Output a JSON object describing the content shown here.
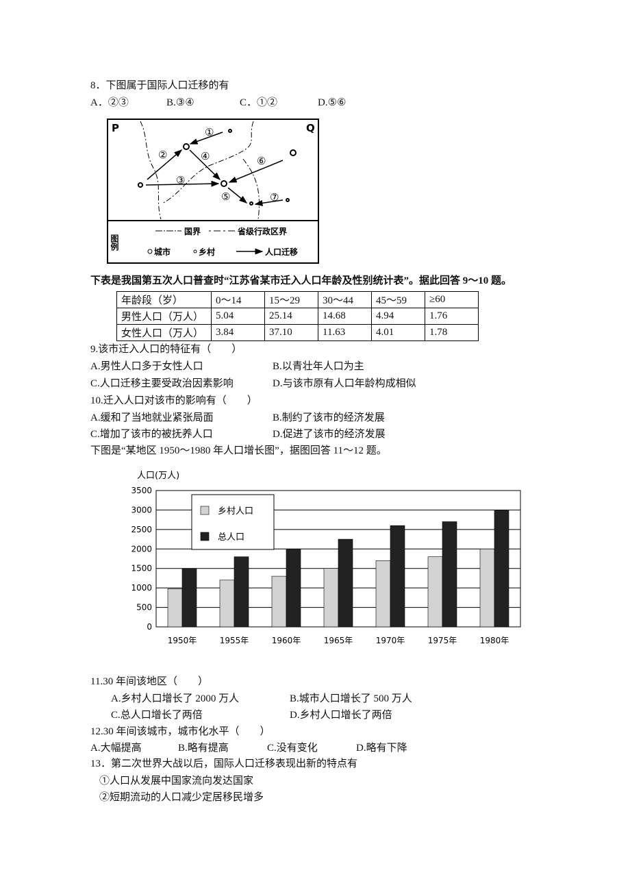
{
  "q8": {
    "stem": "8．下图属于国际人口迁移的有",
    "options": [
      "A．②③",
      "B.③④",
      "C．①②",
      "D.⑤⑥"
    ]
  },
  "map": {
    "corners": [
      "P",
      "Q"
    ],
    "arrows": [
      "①",
      "②",
      "③",
      "④",
      "⑤",
      "⑥",
      "⑦"
    ],
    "legend_title": "图例",
    "legend": [
      "国界",
      "省级行政区界",
      "城市",
      "乡村",
      "人口迁移"
    ]
  },
  "intro1": "下表是我国第五次人口普查时“江苏省某市迁入人口年龄及性别统计表”。据此回答 9～10 题。",
  "table": {
    "header": [
      "年龄段（岁）",
      "0～14",
      "15～29",
      "30～44",
      "45～59",
      "≥60"
    ],
    "rows": [
      [
        "男性人口（万人）",
        "5.04",
        "25.14",
        "14.68",
        "4.94",
        "1.76"
      ],
      [
        "女性人口（万人）",
        "3.84",
        "37.10",
        "11.63",
        "4.01",
        "1.78"
      ]
    ]
  },
  "q9": {
    "stem": "9.该市迁入人口的特征有（　　）",
    "options": [
      "A.男性人口多于女性人口",
      "B.以青壮年人口为主",
      "C.人口迁移主要受政治因素影响",
      "D.与该市原有人口年龄构成相似"
    ]
  },
  "q10": {
    "stem": "10.迁入人口对该市的影响有（　　）",
    "options": [
      "A.缓和了当地就业紧张局面",
      "B.制约了该市的经济发展",
      "C.增加了该市的被抚养人口",
      "D.促进了该市的经济发展"
    ]
  },
  "intro2": "下图是“某地区 1950～1980 年人口增长图”，据图回答 11～12 题。",
  "chart_data": {
    "type": "bar",
    "y_label": "人口(万人)",
    "categories": [
      "1950年",
      "1955年",
      "1960年",
      "1965年",
      "1970年",
      "1975年",
      "1980年"
    ],
    "series": [
      {
        "name": "乡村人口",
        "color": "#d2d2d2",
        "values": [
          980,
          1200,
          1300,
          1500,
          1700,
          1800,
          2000
        ]
      },
      {
        "name": "总人口",
        "color": "#222222",
        "values": [
          1500,
          1800,
          2000,
          2250,
          2600,
          2700,
          3000
        ]
      }
    ],
    "ylim": [
      0,
      3500
    ],
    "yticks": [
      0,
      500,
      1000,
      1500,
      2000,
      2500,
      3000,
      3500
    ],
    "grid": true
  },
  "q11": {
    "stem": "11.30 年间该地区（　　）",
    "options": [
      "A.乡村人口增长了 2000 万人",
      "B.城市人口增长了 500 万人",
      "C.总人口增长了两倍",
      "D.乡村人口增长了两倍"
    ]
  },
  "q12": {
    "stem": "12.30 年间该城市，城市化水平（　　）",
    "options": [
      "A.大幅提高",
      "B.略有提高",
      "C.没有变化",
      "D.略有下降"
    ]
  },
  "q13": {
    "stem": "13．第二次世界大战以后，国际人口迁移表现出新的特点有",
    "items": [
      "①人口从发展中国家流向发达国家",
      "②短期流动的人口减少定居移民增多"
    ]
  }
}
